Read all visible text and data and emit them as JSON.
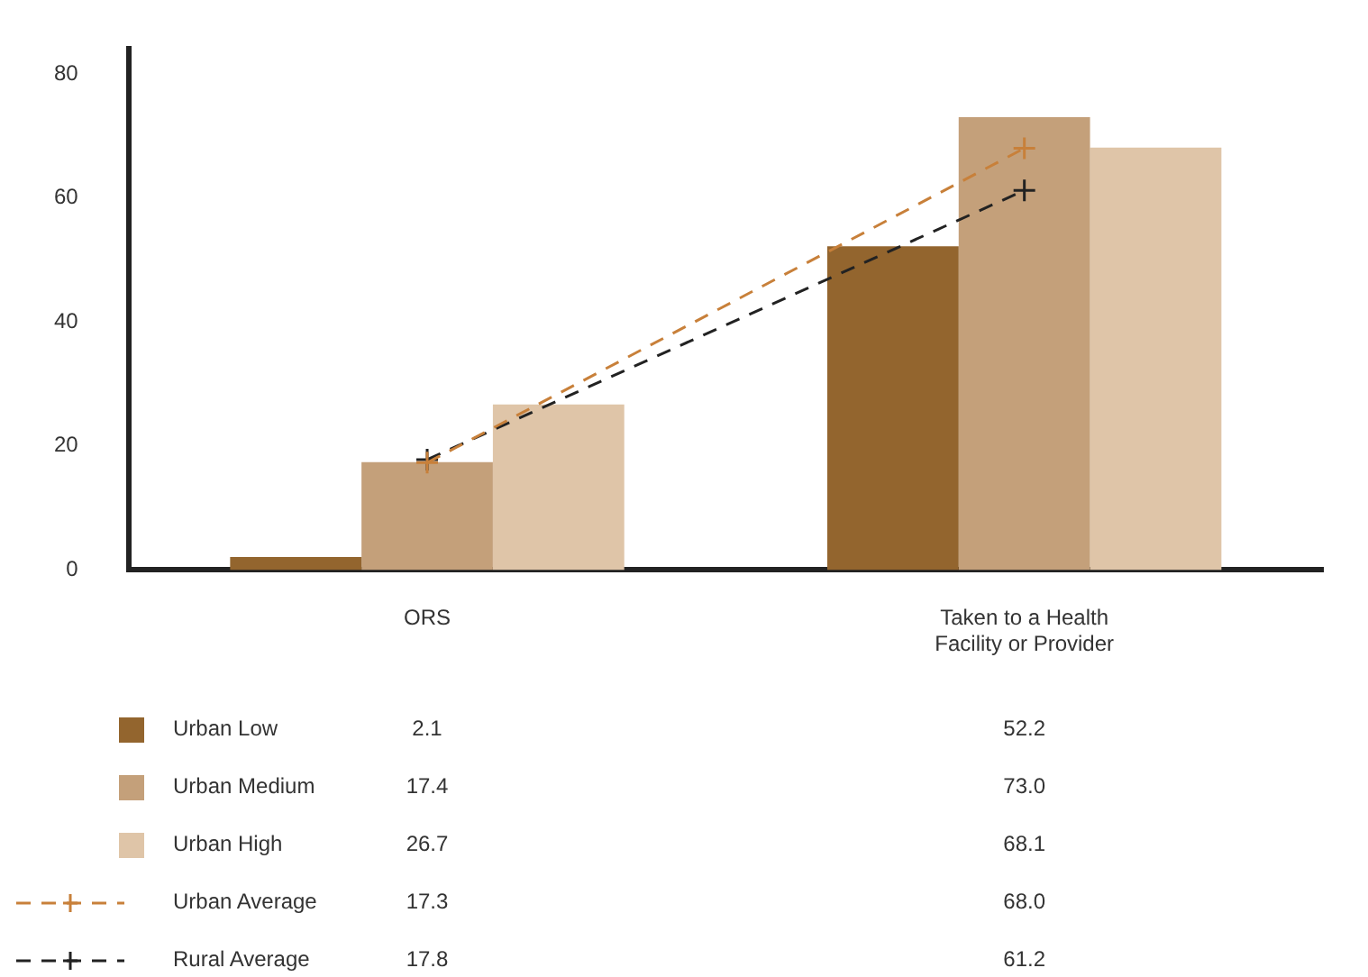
{
  "chart_data": {
    "type": "bar",
    "categories": [
      "ORS",
      "Taken to a Health Facility or Provider"
    ],
    "series": [
      {
        "name": "Urban Low",
        "color": "#93652e",
        "values": [
          2.1,
          52.2
        ],
        "value_labels": [
          "2.1",
          "52.2"
        ]
      },
      {
        "name": "Urban Medium",
        "color": "#c4a07a",
        "values": [
          17.4,
          73.0
        ],
        "value_labels": [
          "17.4",
          "73.0"
        ]
      },
      {
        "name": "Urban High",
        "color": "#dfc5a8",
        "values": [
          26.7,
          68.1
        ],
        "value_labels": [
          "26.7",
          "68.1"
        ]
      },
      {
        "name": "Urban Average",
        "type": "line",
        "color": "#c8803a",
        "values": [
          17.3,
          68.0
        ],
        "value_labels": [
          "17.3",
          "68.0"
        ]
      },
      {
        "name": "Rural Average",
        "type": "line",
        "color": "#222222",
        "values": [
          17.8,
          61.2
        ],
        "value_labels": [
          "17.8",
          "61.2"
        ]
      }
    ],
    "ylim": [
      0,
      84
    ],
    "yticks": [
      0,
      20,
      40,
      60,
      80
    ],
    "grid": false,
    "legend": "bottom",
    "marker": "cross",
    "line_style": "dashed"
  }
}
